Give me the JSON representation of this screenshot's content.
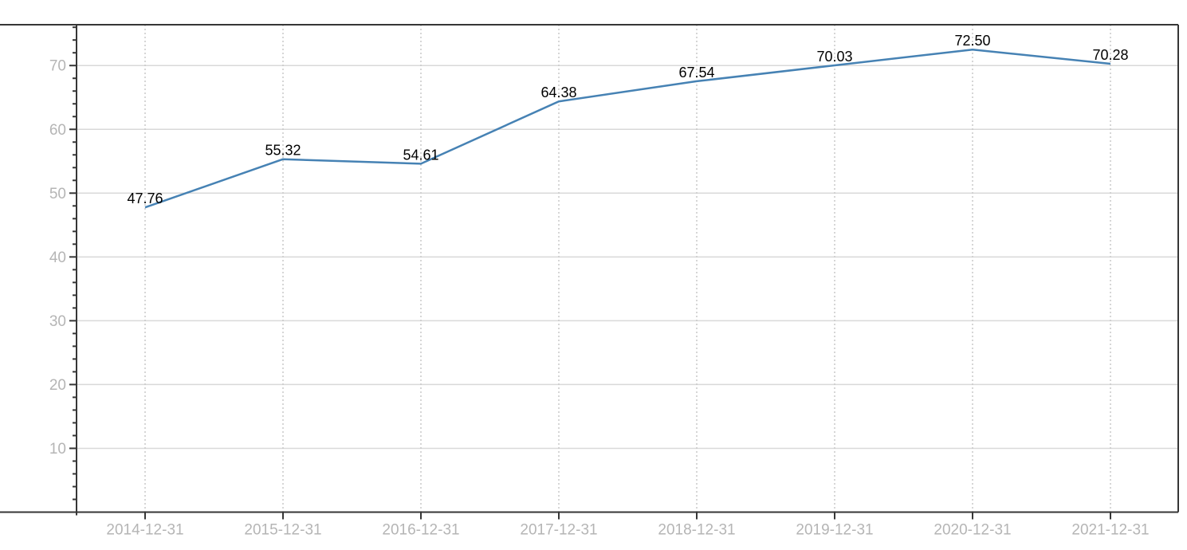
{
  "chart_data": {
    "type": "line",
    "x": [
      "2014-12-31",
      "2015-12-31",
      "2016-12-31",
      "2017-12-31",
      "2018-12-31",
      "2019-12-31",
      "2020-12-31",
      "2021-12-31"
    ],
    "values": [
      47.76,
      55.32,
      54.61,
      64.38,
      67.54,
      70.03,
      72.5,
      70.28
    ],
    "point_labels": [
      "47.76",
      "55.32",
      "54.61",
      "64.38",
      "67.54",
      "70.03",
      "72.50",
      "70.28"
    ],
    "y_major_ticks": [
      10,
      20,
      30,
      40,
      50,
      60,
      70
    ],
    "y_tick_labels": [
      "10",
      "20",
      "30",
      "40",
      "50",
      "60",
      "70"
    ],
    "y_minor_step": 2,
    "ylim": [
      0,
      76.4
    ],
    "grid": {
      "horizontal": "solid",
      "vertical": "dotted",
      "legend": "none"
    },
    "colors": {
      "line": "#4682b4",
      "axis": "#363636",
      "grid_solid": "#d9d9d9",
      "grid_dotted": "#c9c9c9",
      "tick_label": "#b5b5b5",
      "data_label": "#000000",
      "background": "#ffffff"
    }
  }
}
